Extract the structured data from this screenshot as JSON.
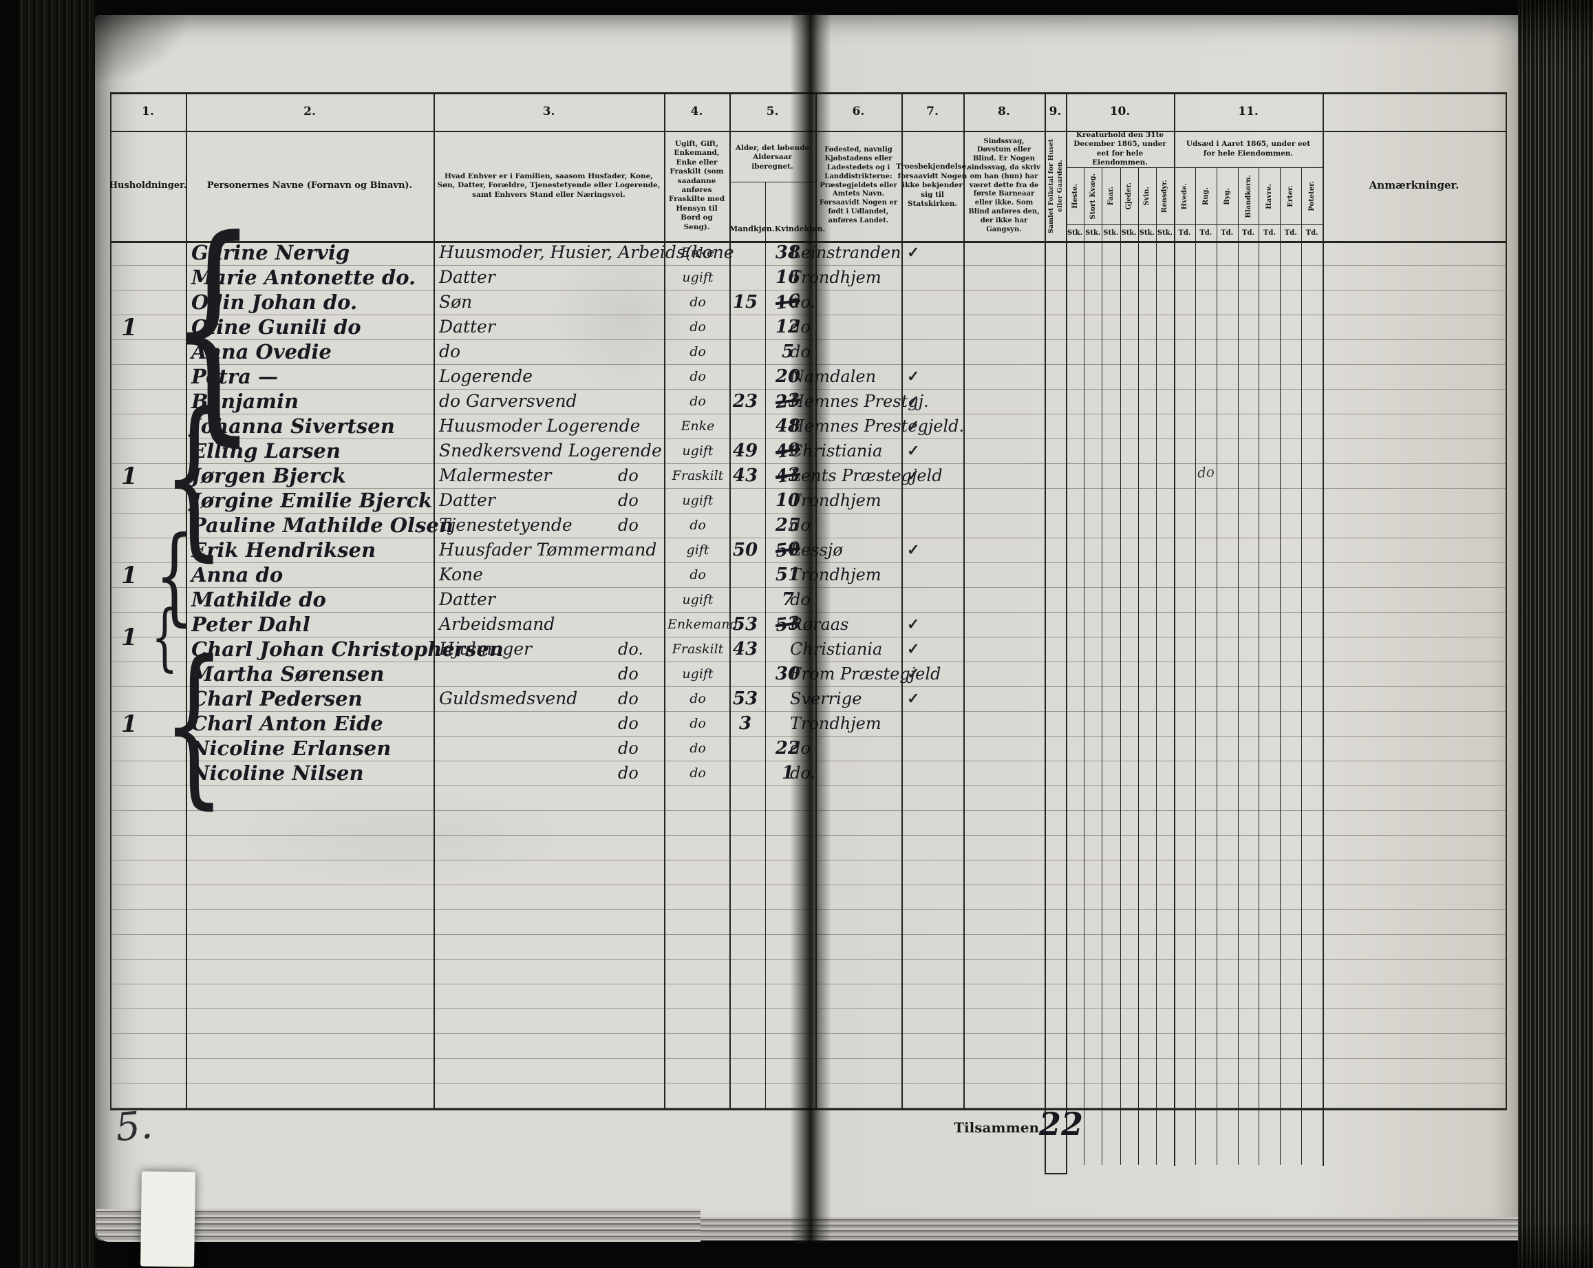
{
  "header": {
    "columns": [
      {
        "num": "1.",
        "title": "Husholdninger."
      },
      {
        "num": "2.",
        "title": "Personernes Navne (Fornavn og Binavn)."
      },
      {
        "num": "3.",
        "title": "Hvad Enhver er i Familien, saasom Husfader, Kone, Søn, Datter, Forældre, Tjenestetyende eller Logerende, samt Enhvers Stand eller Næringsvei."
      },
      {
        "num": "4.",
        "title": "Ugift, Gift, Enkemand, Enke eller Fraskilt (som saadanne anføres Fraskilte med Hensyn til Bord og Seng)."
      },
      {
        "num": "5.",
        "title": "Alder, det løbende Aldersaar iberegnet.",
        "subs": [
          "Mandkjøn.",
          "Kvindekjøn."
        ]
      },
      {
        "num": "6.",
        "title": "Fødested, navnlig Kjøbstadens eller Ladestedets og i Landdistrikterne: Præstegjeldets eller Amtets Navn. Forsaavidt Nogen er født i Udlandet, anføres Landet."
      },
      {
        "num": "7.",
        "title": "Troesbekjendelse, forsaavidt Nogen ikke bekjender sig til Statskirken."
      },
      {
        "num": "8.",
        "title": "Sindssvag, Døvstum eller Blind. Er Nogen sindssvag, da skriv om han (hun) har været dette fra de første Barneaar eller ikke. Som Blind anføres den, der ikke har Gangsyn."
      },
      {
        "num": "9.",
        "title": "Samlet Folketal for Huset eller Gaarden."
      },
      {
        "num": "10.",
        "title": "Kreaturhold den 31te December 1865, under eet for hele Eiendommen.",
        "subs": [
          "Heste.",
          "Stort Kvæg.",
          "Faar.",
          "Gjeder.",
          "Svin.",
          "Rensdyr."
        ],
        "unit": "Stk."
      },
      {
        "num": "11.",
        "title": "Udsæd i Aaret 1865, under eet for hele Eiendommen.",
        "subs": [
          "Hvede.",
          "Rug.",
          "Byg.",
          "Blandkorn.",
          "Havre.",
          "Erter.",
          "Poteter."
        ],
        "unit": "Td."
      },
      {
        "num": "",
        "title": "Anmærkninger."
      }
    ]
  },
  "households": [
    {
      "label": "1"
    },
    {
      "label": "1"
    },
    {
      "label": "1"
    },
    {
      "label": "1"
    },
    {
      "label": "1"
    }
  ],
  "rows": [
    {
      "name": "Gurine Nervig",
      "role": "Huusmoder, Husier, Arbeids(kone",
      "role2": "",
      "status": "Enke",
      "age_m": "",
      "age_f": "38",
      "age_f_x": "",
      "birth": "Leinstranden",
      "check": "✓"
    },
    {
      "name": "Marie Antonette do.",
      "role": "Datter",
      "role2": "",
      "status": "ugift",
      "age_m": "",
      "age_f": "16",
      "age_f_x": "",
      "birth": "Trondhjem",
      "check": ""
    },
    {
      "name": "Odin Johan do.",
      "role": "Søn",
      "role2": "",
      "status": "do",
      "age_m": "15",
      "age_f": "",
      "age_f_x": "16",
      "birth": "do.",
      "check": ""
    },
    {
      "name": "Oline Gunili do",
      "role": "Datter",
      "role2": "",
      "status": "do",
      "age_m": "",
      "age_f": "12",
      "age_f_x": "",
      "birth": "do",
      "check": ""
    },
    {
      "name": "Anna Ovedie",
      "role": "do",
      "role2": "",
      "status": "do",
      "age_m": "",
      "age_f": "5",
      "age_f_x": "",
      "birth": "do",
      "check": ""
    },
    {
      "name": "Petra  —",
      "role": "Logerende",
      "role2": "",
      "status": "do",
      "age_m": "",
      "age_f": "20",
      "age_f_x": "",
      "birth": "Namdalen",
      "check": "✓"
    },
    {
      "name": "Benjamin",
      "role": "do  Garversvend",
      "role2": "",
      "status": "do",
      "age_m": "23",
      "age_f": "",
      "age_f_x": "23",
      "birth": "Hemnes Prestgj.",
      "check": "✓"
    },
    {
      "name": "Johanna Sivertsen",
      "role": "Huusmoder Logerende",
      "role2": "",
      "status": "Enke",
      "age_m": "",
      "age_f": "48",
      "age_f_x": "",
      "birth": "Hemnes Prestegjeld.",
      "check": "✓"
    },
    {
      "name": "Elling Larsen",
      "role": "Snedkersvend Logerende",
      "role2": "",
      "status": "ugift",
      "age_m": "49",
      "age_f": "",
      "age_f_x": "49",
      "birth": "Christiania",
      "check": "✓"
    },
    {
      "name": "Jørgen Bjerck",
      "role": "Malermester",
      "role2": "do",
      "status": "Fraskilt",
      "age_m": "43",
      "age_f": "",
      "age_f_x": "43",
      "birth": "Lents Præstegjeld",
      "check": "✓"
    },
    {
      "name": "Jørgine Emilie Bjerck",
      "role": "Datter",
      "role2": "do",
      "status": "ugift",
      "age_m": "",
      "age_f": "10",
      "age_f_x": "",
      "birth": "Trondhjem",
      "check": ""
    },
    {
      "name": "Pauline Mathilde Olsen",
      "role": "Tjenestetyende",
      "role2": "do",
      "status": "do",
      "age_m": "",
      "age_f": "25",
      "age_f_x": "",
      "birth": "do",
      "check": ""
    },
    {
      "name": "Erik Hendriksen",
      "role": "Huusfader Tømmermand",
      "role2": "",
      "status": "gift",
      "age_m": "50",
      "age_f": "",
      "age_f_x": "50",
      "birth": "Lessjø",
      "check": "✓"
    },
    {
      "name": "Anna do",
      "role": "Kone",
      "role2": "",
      "status": "do",
      "age_m": "",
      "age_f": "51",
      "age_f_x": "",
      "birth": "Trondhjem",
      "check": ""
    },
    {
      "name": "Mathilde do",
      "role": "Datter",
      "role2": "",
      "status": "ugift",
      "age_m": "",
      "age_f": "7",
      "age_f_x": "",
      "birth": "do",
      "check": ""
    },
    {
      "name": "Peter Dahl",
      "role": "Arbeidsmand",
      "role2": "",
      "status": "Enkemand",
      "age_m": "53",
      "age_f": "",
      "age_f_x": "53",
      "birth": "Røraas",
      "check": "✓"
    },
    {
      "name": "Charl Johan Christophersen",
      "role": "Hjulmager",
      "role2": "do.",
      "status": "Fraskilt",
      "age_m": "43",
      "age_f": "",
      "age_f_x": "",
      "birth": "Christiania",
      "check": "✓"
    },
    {
      "name": "Martha Sørensen",
      "role": "",
      "role2": "do",
      "status": "ugift",
      "age_m": "",
      "age_f": "30",
      "age_f_x": "",
      "birth": "From Præstegjeld",
      "check": "✓"
    },
    {
      "name": "Charl Pedersen",
      "role": "Guldsmedsvend",
      "role2": "do",
      "status": "do",
      "age_m": "53",
      "age_f": "",
      "age_f_x": "",
      "birth": "Sverrige",
      "check": "✓"
    },
    {
      "name": "Charl Anton Eide",
      "role": "",
      "role2": "do",
      "status": "do",
      "age_m": "3",
      "age_f": "",
      "age_f_x": "",
      "birth": "Trondhjem",
      "check": ""
    },
    {
      "name": "Nicoline Erlansen",
      "role": "",
      "role2": "do",
      "status": "do",
      "age_m": "",
      "age_f": "22",
      "age_f_x": "",
      "birth": "do",
      "check": ""
    },
    {
      "name": "Nicoline Nilsen",
      "role": "",
      "role2": "do",
      "status": "do",
      "age_m": "",
      "age_f": "1",
      "age_f_x": "",
      "birth": "do.",
      "check": ""
    }
  ],
  "summary": {
    "label": "Tilsammen",
    "value": "22"
  },
  "page_marks": {
    "folio": "5.",
    "stray": "do"
  }
}
